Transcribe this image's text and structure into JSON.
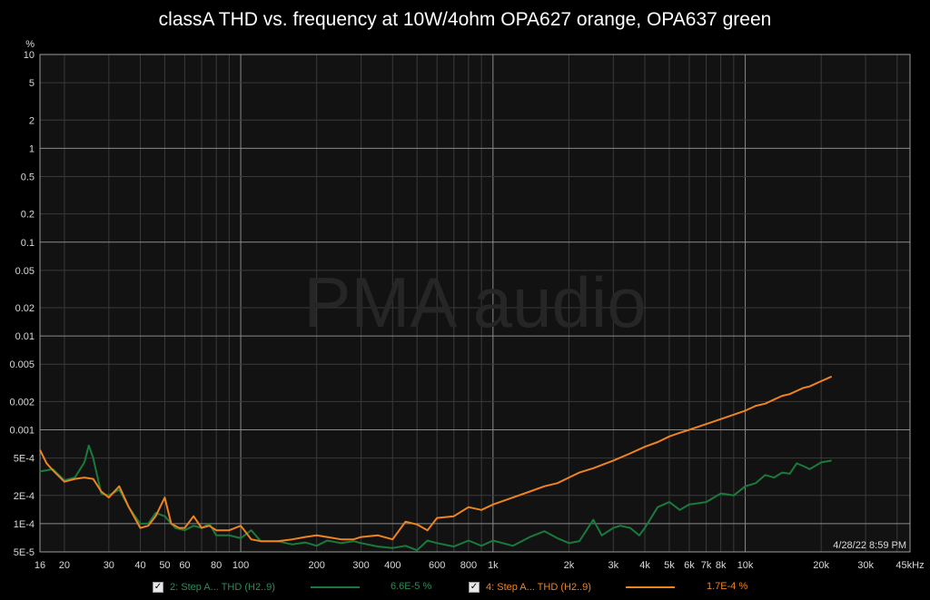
{
  "title": "classA THD vs. frequency at 10W/4ohm OPA627 orange, OPA637 green",
  "watermark": "PMA audio",
  "timestamp": "4/28/22 8:59 PM",
  "colors": {
    "background": "#000000",
    "plot_bg": "#121212",
    "grid": "#3a3a3a",
    "grid_major": "#8a8a8a",
    "green": "#1a7a3c",
    "orange": "#ee8420"
  },
  "legend": [
    {
      "check": "✓",
      "label": "2: Step A... THD (H2..9)",
      "value": "6.6E-5 %",
      "color": "#1a7a3c",
      "text_color": "#2e8b57"
    },
    {
      "check": "✓",
      "label": "4: Step A... THD (H2..9)",
      "value": "1.7E-4 %",
      "color": "#ee8420",
      "text_color": "#ee8420"
    }
  ],
  "chart_data": {
    "type": "line",
    "title": "classA THD vs. frequency at 10W/4ohm OPA627 orange, OPA637 green",
    "xscale": "log",
    "yscale": "log",
    "xlim": [
      16,
      45000
    ],
    "ylim": [
      5e-05,
      10
    ],
    "y_unit": "%",
    "x_unit": "kHz",
    "grid": true,
    "x_ticks": [
      {
        "v": 16,
        "label": "16"
      },
      {
        "v": 20,
        "label": "20"
      },
      {
        "v": 30,
        "label": "30"
      },
      {
        "v": 40,
        "label": "40"
      },
      {
        "v": 50,
        "label": "50"
      },
      {
        "v": 60,
        "label": "60"
      },
      {
        "v": 80,
        "label": "80"
      },
      {
        "v": 100,
        "label": "100"
      },
      {
        "v": 200,
        "label": "200"
      },
      {
        "v": 300,
        "label": "300"
      },
      {
        "v": 400,
        "label": "400"
      },
      {
        "v": 600,
        "label": "600"
      },
      {
        "v": 800,
        "label": "800"
      },
      {
        "v": 1000,
        "label": "1k"
      },
      {
        "v": 2000,
        "label": "2k"
      },
      {
        "v": 3000,
        "label": "3k"
      },
      {
        "v": 4000,
        "label": "4k"
      },
      {
        "v": 5000,
        "label": "5k"
      },
      {
        "v": 6000,
        "label": "6k"
      },
      {
        "v": 7000,
        "label": "7k"
      },
      {
        "v": 8000,
        "label": "8k"
      },
      {
        "v": 10000,
        "label": "10k"
      },
      {
        "v": 20000,
        "label": "20k"
      },
      {
        "v": 30000,
        "label": "30k"
      },
      {
        "v": 45000,
        "label": "45kHz"
      }
    ],
    "y_ticks": [
      {
        "v": 10,
        "label": "10"
      },
      {
        "v": 5,
        "label": "5"
      },
      {
        "v": 2,
        "label": "2"
      },
      {
        "v": 1,
        "label": "1"
      },
      {
        "v": 0.5,
        "label": "0.5"
      },
      {
        "v": 0.2,
        "label": "0.2"
      },
      {
        "v": 0.1,
        "label": "0.1"
      },
      {
        "v": 0.05,
        "label": "0.05"
      },
      {
        "v": 0.02,
        "label": "0.02"
      },
      {
        "v": 0.01,
        "label": "0.01"
      },
      {
        "v": 0.005,
        "label": "0.005"
      },
      {
        "v": 0.002,
        "label": "0.002"
      },
      {
        "v": 0.001,
        "label": "0.001"
      },
      {
        "v": 0.0005,
        "label": "5E-4"
      },
      {
        "v": 0.0002,
        "label": "2E-4"
      },
      {
        "v": 0.0001,
        "label": "1E-4"
      },
      {
        "v": 5e-05,
        "label": "5E-5"
      }
    ],
    "series": [
      {
        "name": "2: Step A... THD (H2..9)",
        "color": "#1a7a3c",
        "x": [
          16,
          18,
          20,
          22,
          24,
          25,
          26,
          28,
          30,
          33,
          36,
          40,
          43,
          46,
          50,
          55,
          60,
          65,
          70,
          75,
          80,
          90,
          100,
          110,
          120,
          140,
          160,
          180,
          200,
          220,
          250,
          280,
          300,
          350,
          400,
          450,
          500,
          550,
          600,
          700,
          800,
          900,
          1000,
          1200,
          1400,
          1600,
          1800,
          2000,
          2200,
          2500,
          2700,
          3000,
          3200,
          3500,
          3800,
          4000,
          4500,
          5000,
          5500,
          6000,
          7000,
          8000,
          9000,
          10000,
          11000,
          12000,
          13000,
          14000,
          15000,
          16000,
          17000,
          18000,
          20000,
          22000
        ],
        "y": [
          0.00036,
          0.00038,
          0.00029,
          0.00031,
          0.00045,
          0.00068,
          0.0005,
          0.00021,
          0.0002,
          0.00023,
          0.00015,
          0.0001,
          0.0001,
          0.00013,
          0.00012,
          9e-05,
          8.5e-05,
          9.5e-05,
          9e-05,
          0.0001,
          7.5e-05,
          7.5e-05,
          7e-05,
          8.5e-05,
          6.5e-05,
          6.5e-05,
          6e-05,
          6.3e-05,
          5.8e-05,
          6.6e-05,
          6.2e-05,
          6.5e-05,
          6.2e-05,
          5.7e-05,
          5.5e-05,
          5.8e-05,
          5.2e-05,
          6.6e-05,
          6.2e-05,
          5.7e-05,
          6.6e-05,
          5.8e-05,
          6.6e-05,
          5.8e-05,
          7.2e-05,
          8.3e-05,
          7e-05,
          6.2e-05,
          6.5e-05,
          0.00011,
          7.5e-05,
          9e-05,
          9.5e-05,
          9e-05,
          7.5e-05,
          9e-05,
          0.00015,
          0.00017,
          0.00014,
          0.00016,
          0.00017,
          0.00021,
          0.0002,
          0.00025,
          0.00027,
          0.00033,
          0.00031,
          0.00035,
          0.00034,
          0.00044,
          0.00041,
          0.00038,
          0.00045,
          0.00047
        ]
      },
      {
        "name": "4: Step A... THD (H2..9)",
        "color": "#ee8420",
        "x": [
          16,
          17,
          18,
          20,
          22,
          24,
          26,
          28,
          30,
          33,
          36,
          40,
          43,
          46,
          50,
          53,
          57,
          60,
          65,
          70,
          75,
          80,
          90,
          100,
          110,
          120,
          140,
          160,
          180,
          200,
          220,
          250,
          280,
          300,
          350,
          400,
          450,
          500,
          550,
          600,
          700,
          800,
          900,
          1000,
          1200,
          1400,
          1600,
          1800,
          2000,
          2200,
          2500,
          3000,
          3500,
          4000,
          4500,
          5000,
          5500,
          6000,
          7000,
          8000,
          9000,
          10000,
          11000,
          12000,
          13000,
          14000,
          15000,
          16000,
          17000,
          18000,
          19000,
          20000,
          21000,
          22000
        ],
        "y": [
          0.00061,
          0.00044,
          0.00037,
          0.00028,
          0.0003,
          0.00031,
          0.0003,
          0.00022,
          0.00019,
          0.00025,
          0.00015,
          9e-05,
          9.5e-05,
          0.00012,
          0.00019,
          0.0001,
          9e-05,
          9e-05,
          0.00012,
          9e-05,
          9.5e-05,
          8.5e-05,
          8.5e-05,
          9.5e-05,
          6.8e-05,
          6.5e-05,
          6.5e-05,
          6.8e-05,
          7.2e-05,
          7.5e-05,
          7.2e-05,
          6.8e-05,
          6.8e-05,
          7.2e-05,
          7.5e-05,
          6.8e-05,
          0.000105,
          9.8e-05,
          8.5e-05,
          0.000115,
          0.00012,
          0.00015,
          0.00014,
          0.00016,
          0.00019,
          0.00022,
          0.00025,
          0.00027,
          0.00031,
          0.00035,
          0.00039,
          0.00047,
          0.00056,
          0.00066,
          0.00074,
          0.00085,
          0.00093,
          0.001,
          0.00115,
          0.0013,
          0.00145,
          0.0016,
          0.0018,
          0.0019,
          0.0021,
          0.0023,
          0.0024,
          0.0026,
          0.0028,
          0.0029,
          0.0031,
          0.0033,
          0.0035,
          0.0037
        ]
      }
    ]
  }
}
